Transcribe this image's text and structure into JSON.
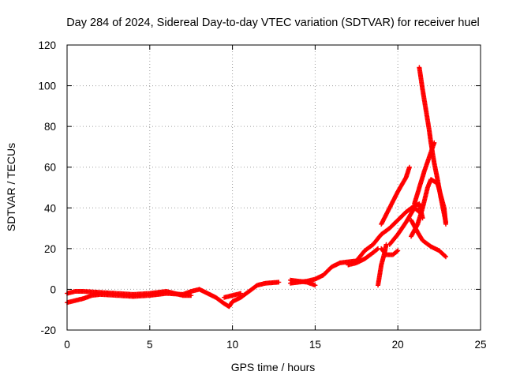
{
  "chart_data": {
    "type": "scatter",
    "title": "Day 284 of 2024, Sidereal Day-to-day VTEC variation (SDTVAR) for receiver huel",
    "xlabel": "GPS time / hours",
    "ylabel": "SDTVAR / TECUs",
    "xlim": [
      0,
      25
    ],
    "ylim": [
      -20,
      120
    ],
    "x_ticks": [
      "0",
      "5",
      "10",
      "15",
      "20",
      "25"
    ],
    "y_ticks": [
      "-20",
      "0",
      "20",
      "40",
      "60",
      "80",
      "100",
      "120"
    ],
    "grid": true,
    "marker": "plus",
    "series": [
      {
        "color": "#ff0000",
        "tracks": [
          [
            [
              0.0,
              -2.0
            ],
            [
              0.5,
              -1.0
            ],
            [
              1.0,
              -1.0
            ],
            [
              2.0,
              -1.5
            ],
            [
              3.0,
              -2.0
            ],
            [
              4.0,
              -2.5
            ],
            [
              5.0,
              -2.0
            ],
            [
              6.0,
              -1.0
            ],
            [
              7.0,
              -3.0
            ],
            [
              7.5,
              -3.0
            ]
          ],
          [
            [
              0.0,
              -6.5
            ],
            [
              0.5,
              -5.5
            ],
            [
              1.0,
              -4.5
            ],
            [
              1.5,
              -3.0
            ],
            [
              2.0,
              -2.5
            ],
            [
              3.0,
              -3.0
            ],
            [
              4.0,
              -3.5
            ],
            [
              5.0,
              -3.0
            ],
            [
              6.0,
              -2.0
            ],
            [
              7.0,
              -2.5
            ],
            [
              7.5,
              -1.0
            ],
            [
              8.0,
              0.0
            ],
            [
              8.5,
              -2.0
            ],
            [
              9.0,
              -4.0
            ],
            [
              9.5,
              -7.0
            ],
            [
              9.8,
              -8.5
            ],
            [
              10.0,
              -6.0
            ],
            [
              10.5,
              -4.0
            ],
            [
              11.0,
              -1.0
            ],
            [
              11.5,
              2.0
            ],
            [
              12.0,
              3.0
            ],
            [
              12.8,
              3.5
            ]
          ],
          [
            [
              9.5,
              -4.0
            ],
            [
              10.0,
              -3.0
            ],
            [
              10.5,
              -2.0
            ]
          ],
          [
            [
              13.5,
              4.5
            ],
            [
              14.5,
              3.5
            ],
            [
              15.0,
              2.0
            ]
          ],
          [
            [
              13.5,
              3.0
            ],
            [
              14.5,
              4.0
            ],
            [
              15.0,
              5.0
            ],
            [
              15.5,
              7.0
            ],
            [
              16.0,
              11.0
            ],
            [
              16.5,
              13.0
            ],
            [
              17.0,
              13.5
            ],
            [
              17.5,
              14.0
            ],
            [
              18.0,
              19.0
            ],
            [
              18.5,
              22.0
            ],
            [
              19.0,
              27.0
            ],
            [
              19.5,
              30.0
            ],
            [
              20.0,
              34.0
            ],
            [
              20.5,
              38.0
            ],
            [
              21.0,
              41.0
            ],
            [
              21.3,
              42.0
            ],
            [
              21.5,
              35.0
            ]
          ],
          [
            [
              17.0,
              12.0
            ],
            [
              17.5,
              13.0
            ],
            [
              18.0,
              15.0
            ],
            [
              18.5,
              18.0
            ],
            [
              18.8,
              20.0
            ]
          ],
          [
            [
              19.0,
              32.0
            ],
            [
              19.5,
              40.0
            ],
            [
              20.0,
              48.0
            ],
            [
              20.5,
              55.0
            ],
            [
              20.7,
              60.0
            ]
          ],
          [
            [
              18.8,
              2.0
            ],
            [
              19.0,
              12.0
            ],
            [
              19.2,
              18.0
            ],
            [
              19.3,
              22.0
            ]
          ],
          [
            [
              19.0,
              20.0
            ],
            [
              19.3,
              17.0
            ],
            [
              19.7,
              17.0
            ],
            [
              20.0,
              19.0
            ]
          ],
          [
            [
              19.5,
              22.0
            ],
            [
              20.0,
              27.0
            ],
            [
              20.5,
              33.0
            ],
            [
              21.0,
              40.0
            ],
            [
              21.3,
              38.0
            ]
          ],
          [
            [
              20.8,
              34.0
            ],
            [
              21.2,
              28.0
            ],
            [
              21.5,
              24.0
            ],
            [
              22.0,
              21.0
            ],
            [
              22.5,
              19.0
            ],
            [
              22.9,
              16.0
            ]
          ],
          [
            [
              20.8,
              26.0
            ],
            [
              21.2,
              32.0
            ],
            [
              21.5,
              40.0
            ],
            [
              21.8,
              50.0
            ],
            [
              22.0,
              54.0
            ],
            [
              22.4,
              52.0
            ],
            [
              22.8,
              40.0
            ],
            [
              22.9,
              32.0
            ]
          ],
          [
            [
              21.0,
              42.0
            ],
            [
              21.3,
              50.0
            ],
            [
              21.6,
              58.0
            ],
            [
              21.9,
              65.0
            ],
            [
              22.2,
              72.0
            ]
          ],
          [
            [
              21.3,
              109.0
            ],
            [
              21.5,
              98.0
            ],
            [
              21.7,
              88.0
            ],
            [
              21.9,
              78.0
            ],
            [
              22.0,
              72.0
            ],
            [
              22.2,
              62.0
            ],
            [
              22.4,
              54.0
            ],
            [
              22.6,
              45.0
            ],
            [
              22.9,
              33.0
            ]
          ]
        ]
      }
    ]
  }
}
